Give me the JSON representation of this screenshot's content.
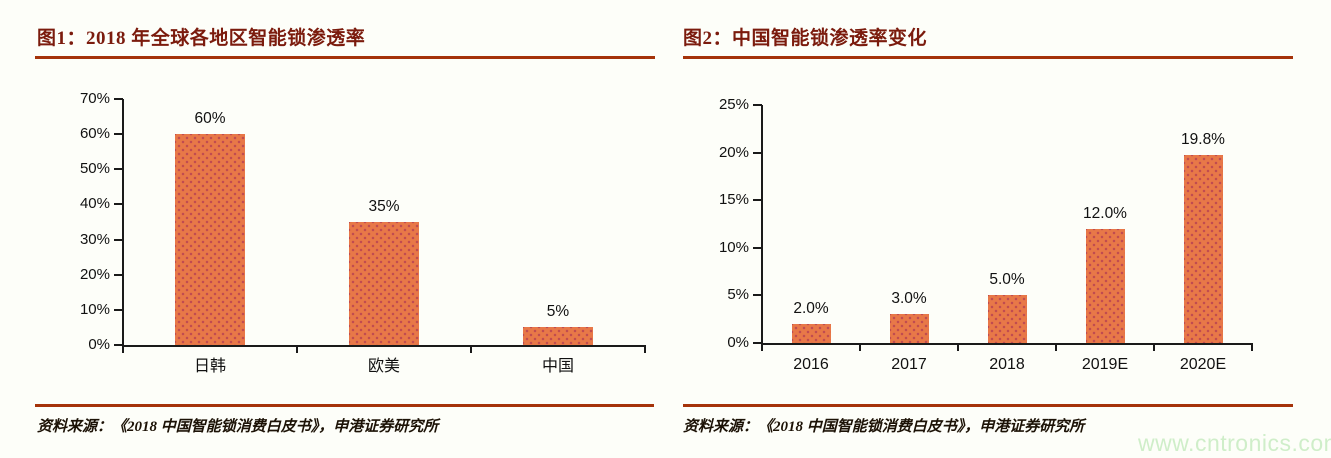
{
  "watermark": {
    "text": "www.cntronics.com"
  },
  "colors": {
    "bar": "#e87848",
    "bar_dot": "#c04a50",
    "title": "#7b1b0d",
    "rule": "#a5330a",
    "axis": "#1a1a1a",
    "watermark": "#cfeec9",
    "background": "#fdfef9"
  },
  "chart_data": [
    {
      "type": "bar",
      "title": "图1：2018 年全球各地区智能锁渗透率",
      "categories": [
        "日韩",
        "欧美",
        "中国"
      ],
      "values": [
        60,
        35,
        5
      ],
      "value_labels": [
        "60%",
        "35%",
        "5%"
      ],
      "ylim": [
        0,
        70
      ],
      "ytick_step": 10,
      "yticks": [
        "0%",
        "10%",
        "20%",
        "30%",
        "40%",
        "50%",
        "60%",
        "70%"
      ],
      "grid": "off",
      "legend": "none",
      "source": "资料来源：《2018 中国智能锁消费白皮书》，申港证券研究所"
    },
    {
      "type": "bar",
      "title": "图2：中国智能锁渗透率变化",
      "categories": [
        "2016",
        "2017",
        "2018",
        "2019E",
        "2020E"
      ],
      "values": [
        2.0,
        3.0,
        5.0,
        12.0,
        19.8
      ],
      "value_labels": [
        "2.0%",
        "3.0%",
        "5.0%",
        "12.0%",
        "19.8%"
      ],
      "ylim": [
        0,
        25
      ],
      "ytick_step": 5,
      "yticks": [
        "0%",
        "5%",
        "10%",
        "15%",
        "20%",
        "25%"
      ],
      "grid": "off",
      "legend": "none",
      "source": "资料来源：《2018 中国智能锁消费白皮书》，申港证券研究所"
    }
  ]
}
